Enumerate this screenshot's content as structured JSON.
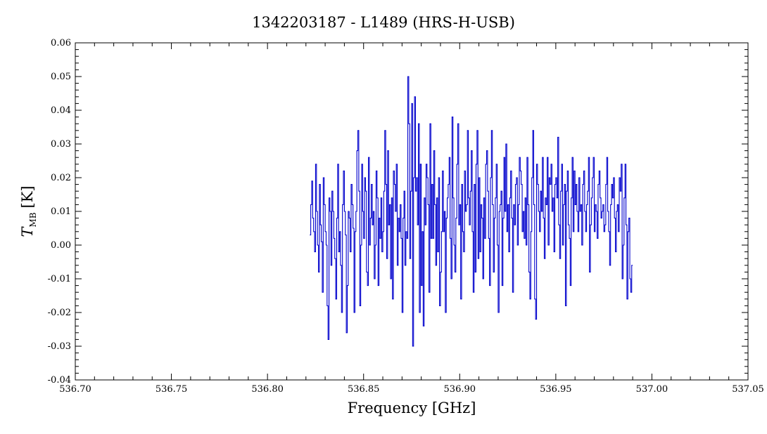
{
  "chart_data": {
    "type": "line",
    "title": "1342203187 - L1489 (HRS-H-USB)",
    "xlabel": "Frequency [GHz]",
    "ylabel_main": "T",
    "ylabel_sub": "MB",
    "ylabel_unit": "[K]",
    "xlim": [
      536.7,
      537.05
    ],
    "ylim": [
      -0.04,
      0.06
    ],
    "x_ticks": [
      "536.70",
      "536.75",
      "536.80",
      "536.85",
      "536.90",
      "536.95",
      "537.00",
      "537.05"
    ],
    "y_ticks": [
      "-0.04",
      "-0.03",
      "-0.02",
      "-0.01",
      "0.00",
      "0.01",
      "0.02",
      "0.03",
      "0.04",
      "0.05",
      "0.06"
    ],
    "grid": false,
    "series": [
      {
        "color": "#0000cc",
        "step": 0.0005,
        "x_start": 536.822,
        "values": [
          0.003,
          0.012,
          0.019,
          0.008,
          0.004,
          -0.002,
          0.024,
          0.01,
          0.0,
          -0.008,
          0.018,
          0.006,
          0.001,
          -0.014,
          0.02,
          0.012,
          0.004,
          0.0,
          -0.018,
          -0.028,
          0.014,
          0.01,
          -0.006,
          0.016,
          0.01,
          0.002,
          -0.004,
          -0.016,
          0.008,
          0.024,
          -0.002,
          0.004,
          -0.006,
          -0.02,
          0.012,
          0.022,
          0.01,
          0.003,
          -0.026,
          -0.012,
          0.01,
          0.008,
          -0.002,
          0.018,
          0.012,
          0.005,
          -0.02,
          0.004,
          0.01,
          0.028,
          0.034,
          0.016,
          -0.018,
          0.0,
          0.024,
          0.01,
          0.002,
          0.02,
          0.016,
          -0.008,
          -0.012,
          0.026,
          0.0,
          0.008,
          0.018,
          0.006,
          0.01,
          -0.01,
          0.0,
          0.022,
          0.014,
          -0.012,
          0.008,
          0.002,
          0.014,
          -0.002,
          0.004,
          0.016,
          0.034,
          0.018,
          -0.004,
          0.028,
          0.006,
          0.012,
          -0.01,
          0.014,
          -0.016,
          0.022,
          0.018,
          0.01,
          0.024,
          -0.006,
          0.008,
          0.004,
          0.012,
          0.002,
          -0.02,
          0.008,
          0.016,
          -0.006,
          0.004,
          0.002,
          0.05,
          0.036,
          -0.004,
          0.016,
          0.042,
          -0.03,
          0.02,
          0.044,
          0.016,
          0.02,
          0.006,
          0.036,
          -0.02,
          0.024,
          -0.012,
          0.004,
          -0.024,
          0.014,
          0.006,
          0.024,
          0.02,
          0.012,
          -0.014,
          0.036,
          0.002,
          0.018,
          0.002,
          0.028,
          0.012,
          -0.006,
          0.014,
          -0.002,
          0.02,
          -0.018,
          -0.008,
          0.004,
          0.022,
          0.004,
          0.01,
          -0.02,
          0.008,
          0.014,
          0.018,
          0.026,
          0.002,
          -0.01,
          0.038,
          0.014,
          0.0,
          -0.008,
          0.008,
          0.024,
          0.036,
          0.006,
          0.012,
          -0.016,
          0.018,
          0.004,
          -0.002,
          0.022,
          0.01,
          0.012,
          0.034,
          0.014,
          0.006,
          0.016,
          0.028,
          0.004,
          -0.014,
          0.018,
          -0.008,
          0.024,
          0.034,
          -0.004,
          0.02,
          -0.002,
          0.012,
          0.008,
          -0.01,
          0.014,
          0.002,
          0.024,
          0.028,
          0.016,
          0.002,
          -0.012,
          0.02,
          0.034,
          0.012,
          -0.008,
          0.008,
          0.014,
          0.024,
          0.0,
          -0.02,
          0.01,
          0.012,
          0.016,
          -0.012,
          0.008,
          0.026,
          0.01,
          0.03,
          0.004,
          0.012,
          -0.002,
          0.014,
          0.022,
          0.008,
          -0.014,
          0.012,
          0.006,
          0.018,
          0.02,
          0.0,
          0.012,
          0.026,
          0.022,
          0.018,
          0.004,
          0.01,
          0.002,
          0.014,
          0.0,
          0.026,
          0.012,
          -0.008,
          -0.016,
          0.004,
          0.02,
          0.034,
          0.012,
          -0.016,
          -0.022,
          0.024,
          0.018,
          0.01,
          0.004,
          0.016,
          0.01,
          0.026,
          0.008,
          -0.004,
          0.014,
          0.012,
          0.026,
          0.0,
          0.02,
          0.018,
          0.024,
          0.01,
          0.014,
          -0.002,
          0.018,
          0.02,
          0.014,
          0.032,
          0.006,
          -0.004,
          0.016,
          0.024,
          0.0,
          0.012,
          0.018,
          -0.018,
          0.016,
          0.022,
          0.006,
          0.002,
          -0.012,
          0.014,
          0.026,
          0.004,
          0.022,
          0.012,
          0.018,
          0.01,
          0.004,
          0.02,
          0.01,
          0.012,
          0.0,
          0.018,
          0.022,
          0.01,
          0.004,
          0.012,
          0.016,
          0.026,
          -0.008,
          0.006,
          0.014,
          0.02,
          0.026,
          0.004,
          0.012,
          0.01,
          0.002,
          0.018,
          0.022,
          0.014,
          0.008,
          0.01,
          0.012,
          0.004,
          0.006,
          0.018,
          0.026,
          0.01,
          0.004,
          -0.006,
          0.012,
          0.018,
          0.014,
          0.02,
          0.008,
          -0.002,
          0.01,
          0.012,
          0.004,
          0.02,
          0.016,
          0.024,
          -0.01,
          0.0,
          0.014,
          0.024,
          0.006,
          -0.016,
          0.004,
          0.008,
          -0.01,
          -0.014,
          -0.006
        ],
        "note_visible": ""
      }
    ]
  }
}
